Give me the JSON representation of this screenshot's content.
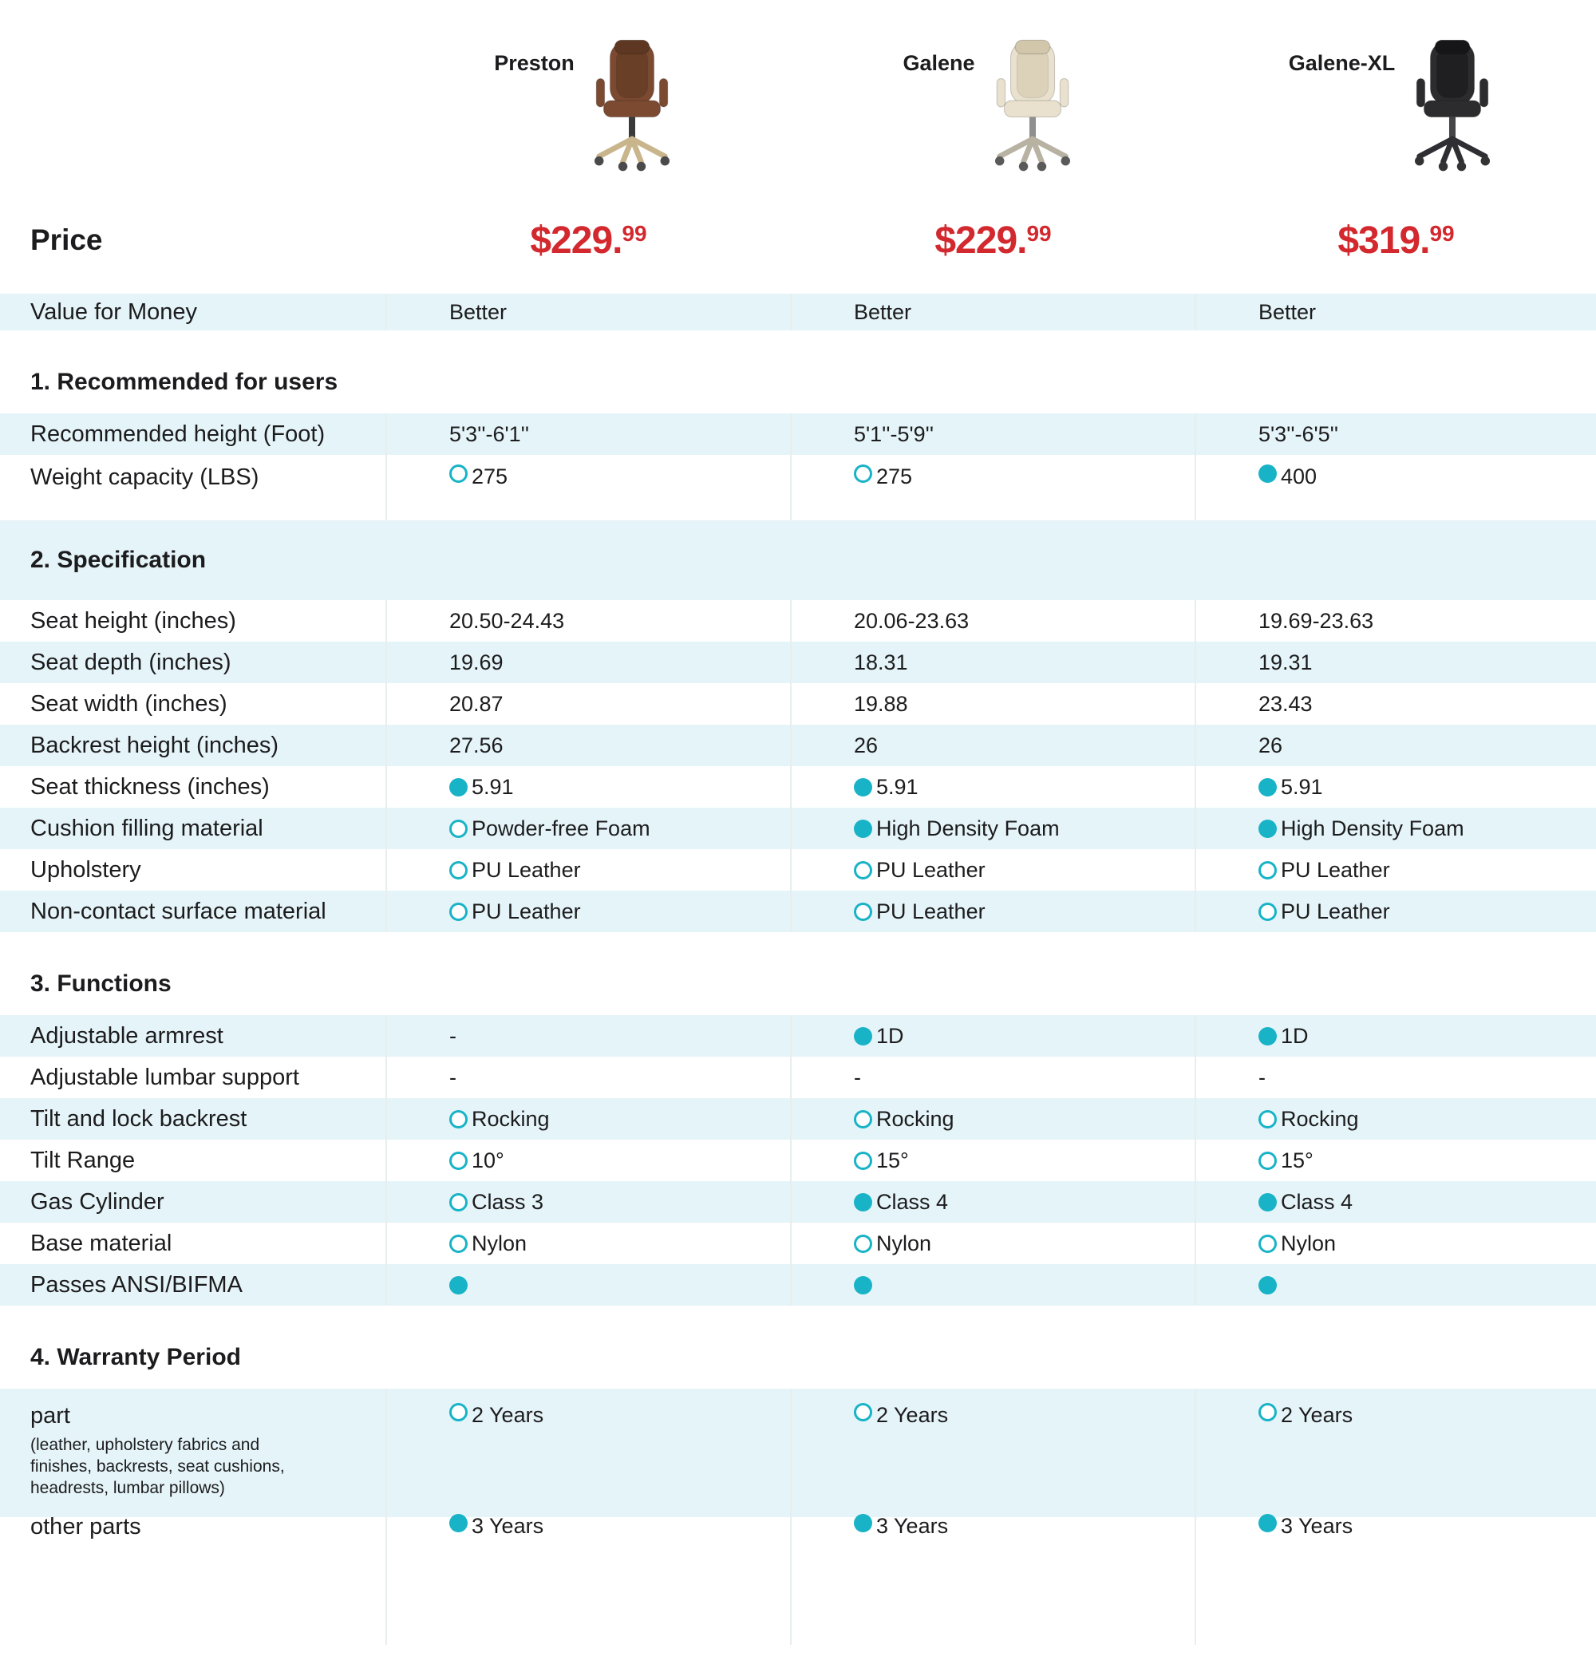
{
  "colors": {
    "accent_teal": "#18b3c7",
    "price_red": "#d2282e",
    "stripe_blue": "#e5f4f8",
    "divider": "#e8edee",
    "text": "#1c1c1e"
  },
  "price_label": "Price",
  "products": [
    {
      "name": "Preston",
      "price_main": "$229.",
      "price_sup": "99",
      "chair": {
        "main": "#7b4a31",
        "shade": "#5d3722",
        "base": "#c9b58c",
        "stem": "#3a3a3a",
        "caster": "#4a4a4a"
      }
    },
    {
      "name": "Galene",
      "price_main": "$229.",
      "price_sup": "99",
      "chair": {
        "main": "#e9e1cd",
        "shade": "#d2c6ab",
        "base": "#b8b2a3",
        "stem": "#8f8f8f",
        "caster": "#5a5a5a"
      }
    },
    {
      "name": "Galene-XL",
      "price_main": "$319.",
      "price_sup": "99",
      "chair": {
        "main": "#2c2c2f",
        "shade": "#161618",
        "base": "#2f2f33",
        "stem": "#454549",
        "caster": "#333336"
      }
    }
  ],
  "value_row": {
    "label": "Value for Money",
    "values": [
      {
        "text": "Better"
      },
      {
        "text": "Better"
      },
      {
        "text": "Better"
      }
    ]
  },
  "sections": [
    {
      "title": "1. Recommended for users",
      "rows": [
        {
          "label": "Recommended height (Foot)",
          "values": [
            {
              "text": "5'3''-6'1''"
            },
            {
              "text": "5'1''-5'9''"
            },
            {
              "text": "5'3''-6'5''"
            }
          ]
        },
        {
          "label": "Weight capacity (LBS)",
          "size": "h-top",
          "values": [
            {
              "dot": "outline",
              "text": "275"
            },
            {
              "dot": "outline",
              "text": "275"
            },
            {
              "dot": "filled",
              "text": "400"
            }
          ]
        }
      ]
    },
    {
      "title": "2. Specification",
      "rows": [
        {
          "label": "Seat height (inches)",
          "values": [
            {
              "text": "20.50-24.43"
            },
            {
              "text": "20.06-23.63"
            },
            {
              "text": "19.69-23.63"
            }
          ]
        },
        {
          "label": "Seat depth (inches)",
          "values": [
            {
              "text": "19.69"
            },
            {
              "text": "18.31"
            },
            {
              "text": "19.31"
            }
          ]
        },
        {
          "label": "Seat width (inches)",
          "values": [
            {
              "text": "20.87"
            },
            {
              "text": "19.88"
            },
            {
              "text": "23.43"
            }
          ]
        },
        {
          "label": "Backrest height (inches)",
          "values": [
            {
              "text": "27.56"
            },
            {
              "text": "26"
            },
            {
              "text": "26"
            }
          ]
        },
        {
          "label": "Seat thickness (inches)",
          "values": [
            {
              "dot": "filled",
              "text": "5.91"
            },
            {
              "dot": "filled",
              "text": "5.91"
            },
            {
              "dot": "filled",
              "text": "5.91"
            }
          ]
        },
        {
          "label": "Cushion filling material",
          "values": [
            {
              "dot": "outline",
              "text": "Powder-free Foam"
            },
            {
              "dot": "filled",
              "text": "High Density Foam"
            },
            {
              "dot": "filled",
              "text": "High Density Foam"
            }
          ]
        },
        {
          "label": "Upholstery",
          "values": [
            {
              "dot": "outline",
              "text": "PU Leather"
            },
            {
              "dot": "outline",
              "text": "PU Leather"
            },
            {
              "dot": "outline",
              "text": "PU Leather"
            }
          ]
        },
        {
          "label": "Non-contact surface material",
          "values": [
            {
              "dot": "outline",
              "text": "PU Leather"
            },
            {
              "dot": "outline",
              "text": "PU Leather"
            },
            {
              "dot": "outline",
              "text": "PU Leather"
            }
          ]
        }
      ]
    },
    {
      "title": "3. Functions",
      "rows": [
        {
          "label": "Adjustable armrest",
          "values": [
            {
              "text": "-"
            },
            {
              "dot": "filled",
              "text": "1D"
            },
            {
              "dot": "filled",
              "text": "1D"
            }
          ]
        },
        {
          "label": "Adjustable lumbar support",
          "values": [
            {
              "text": "-"
            },
            {
              "text": "-"
            },
            {
              "text": "-"
            }
          ]
        },
        {
          "label": "Tilt and lock backrest",
          "values": [
            {
              "dot": "outline",
              "text": "Rocking"
            },
            {
              "dot": "outline",
              "text": "Rocking"
            },
            {
              "dot": "outline",
              "text": "Rocking"
            }
          ]
        },
        {
          "label": "Tilt Range",
          "values": [
            {
              "dot": "outline",
              "text": "10°"
            },
            {
              "dot": "outline",
              "text": "15°"
            },
            {
              "dot": "outline",
              "text": "15°"
            }
          ]
        },
        {
          "label": "Gas Cylinder",
          "values": [
            {
              "dot": "outline",
              "text": "Class 3"
            },
            {
              "dot": "filled",
              "text": "Class 4"
            },
            {
              "dot": "filled",
              "text": "Class 4"
            }
          ]
        },
        {
          "label": "Base material",
          "values": [
            {
              "dot": "outline",
              "text": "Nylon"
            },
            {
              "dot": "outline",
              "text": "Nylon"
            },
            {
              "dot": "outline",
              "text": "Nylon"
            }
          ]
        },
        {
          "label": "Passes ANSI/BIFMA",
          "values": [
            {
              "dot": "filled",
              "text": ""
            },
            {
              "dot": "filled",
              "text": ""
            },
            {
              "dot": "filled",
              "text": ""
            }
          ]
        }
      ]
    },
    {
      "title": "4. Warranty Period",
      "rows": [
        {
          "label": "part",
          "sublabel": "(leather, upholstery fabrics and finishes, backrests, seat cushions, headrests, lumbar pillows)",
          "size": "h-part",
          "values": [
            {
              "dot": "outline",
              "text": "2 Years"
            },
            {
              "dot": "outline",
              "text": "2 Years"
            },
            {
              "dot": "outline",
              "text": "2 Years"
            }
          ]
        },
        {
          "label": "other parts",
          "size": "h-last",
          "values": [
            {
              "dot": "filled",
              "text": "3 Years"
            },
            {
              "dot": "filled",
              "text": "3 Years"
            },
            {
              "dot": "filled",
              "text": "3 Years"
            }
          ]
        }
      ]
    }
  ]
}
